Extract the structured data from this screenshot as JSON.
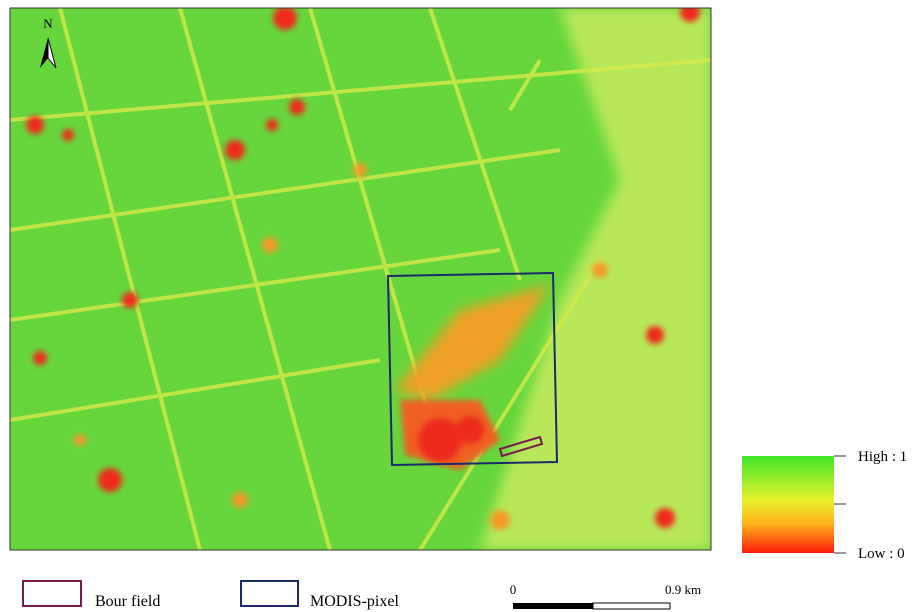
{
  "map": {
    "north_label": "N"
  },
  "color_legend": {
    "high_label": "High : 1",
    "low_label": "Low : 0"
  },
  "legend": {
    "items": [
      {
        "label": "Bour field"
      },
      {
        "label": "MODIS-pixel"
      }
    ]
  },
  "scale_bar": {
    "start_label": "0",
    "end_label": "0.9 km"
  }
}
